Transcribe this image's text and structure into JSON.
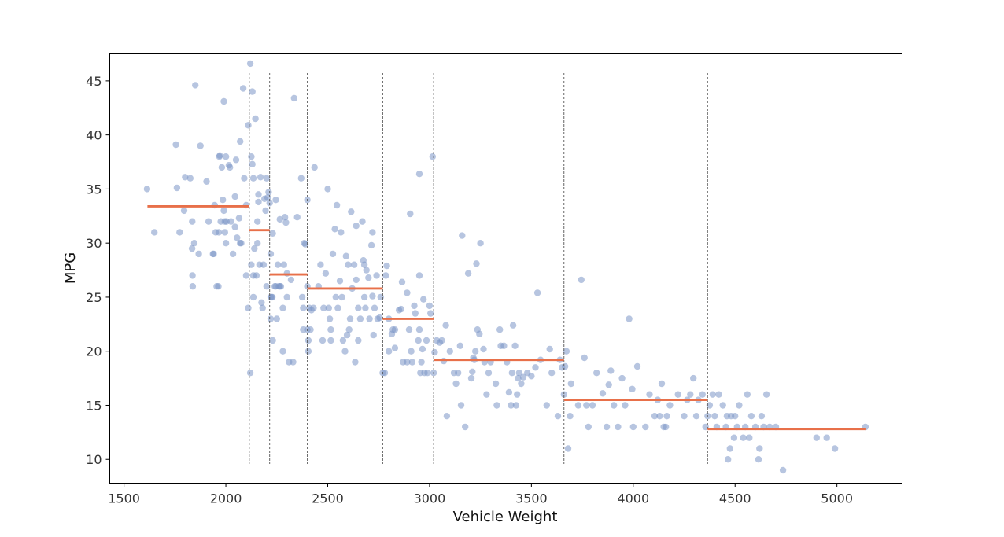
{
  "chart_data": {
    "type": "scatter",
    "title": "",
    "xlabel": "Vehicle Weight",
    "ylabel": "MPG",
    "xlim": [
      1430,
      5320
    ],
    "ylim": [
      7.8,
      47.5
    ],
    "x_ticks": [
      1500,
      2000,
      2500,
      3000,
      3500,
      4000,
      4500,
      5000
    ],
    "y_ticks": [
      10,
      15,
      20,
      25,
      30,
      35,
      40,
      45
    ],
    "grid": false,
    "legend": "none",
    "colors": {
      "points": "#7b96c6",
      "step_lines": "#e8704a",
      "bin_edges": "#555555",
      "frame": "#000000"
    },
    "bin_edges": [
      2115,
      2215,
      2400,
      2770,
      3020,
      3660,
      4365
    ],
    "step_segments": [
      {
        "x0": 1615,
        "x1": 2115,
        "y": 33.4
      },
      {
        "x0": 2115,
        "x1": 2215,
        "y": 31.2
      },
      {
        "x0": 2215,
        "x1": 2400,
        "y": 27.1
      },
      {
        "x0": 2400,
        "x1": 2770,
        "y": 25.8
      },
      {
        "x0": 2770,
        "x1": 3020,
        "y": 23.0
      },
      {
        "x0": 3020,
        "x1": 3660,
        "y": 19.2
      },
      {
        "x0": 3660,
        "x1": 4365,
        "y": 15.5
      },
      {
        "x0": 4365,
        "x1": 5140,
        "y": 12.8
      }
    ],
    "points": [
      [
        1613,
        35.0
      ],
      [
        1649,
        31.0
      ],
      [
        1755,
        39.1
      ],
      [
        1760,
        35.1
      ],
      [
        1773,
        31.0
      ],
      [
        1795,
        33.0
      ],
      [
        1800,
        36.1
      ],
      [
        1825,
        36.0
      ],
      [
        1834,
        29.5
      ],
      [
        1835,
        32.0
      ],
      [
        1836,
        27.0
      ],
      [
        1837,
        26.0
      ],
      [
        1845,
        30.0
      ],
      [
        1850,
        44.6
      ],
      [
        1867,
        29.0
      ],
      [
        1875,
        39.0
      ],
      [
        1905,
        35.7
      ],
      [
        1915,
        32.0
      ],
      [
        1937,
        29.0
      ],
      [
        1940,
        29.0
      ],
      [
        1945,
        33.5
      ],
      [
        1950,
        31.0
      ],
      [
        1955,
        26.0
      ],
      [
        1963,
        26.0
      ],
      [
        1965,
        31.0
      ],
      [
        1968,
        38.0
      ],
      [
        1970,
        38.1
      ],
      [
        1975,
        32.0
      ],
      [
        1980,
        37.0
      ],
      [
        1985,
        34.0
      ],
      [
        1990,
        43.1
      ],
      [
        1990,
        33.0
      ],
      [
        1995,
        32.0
      ],
      [
        1995,
        31.0
      ],
      [
        2000,
        38.0
      ],
      [
        2000,
        30.0
      ],
      [
        2003,
        32.0
      ],
      [
        2015,
        37.2
      ],
      [
        2020,
        37.0
      ],
      [
        2025,
        32.0
      ],
      [
        2035,
        29.0
      ],
      [
        2045,
        31.5
      ],
      [
        2045,
        34.3
      ],
      [
        2050,
        37.7
      ],
      [
        2055,
        30.5
      ],
      [
        2065,
        32.3
      ],
      [
        2070,
        39.4
      ],
      [
        2070,
        30.0
      ],
      [
        2075,
        30.0
      ],
      [
        2085,
        44.3
      ],
      [
        2090,
        36.0
      ],
      [
        2100,
        33.5
      ],
      [
        2100,
        27.0
      ],
      [
        2110,
        40.9
      ],
      [
        2110,
        24.0
      ],
      [
        2120,
        46.6
      ],
      [
        2120,
        18.0
      ],
      [
        2125,
        38.0
      ],
      [
        2125,
        28.0
      ],
      [
        2130,
        44.0
      ],
      [
        2130,
        37.3
      ],
      [
        2135,
        36.0
      ],
      [
        2135,
        27.0
      ],
      [
        2135,
        25.0
      ],
      [
        2140,
        29.5
      ],
      [
        2145,
        41.5
      ],
      [
        2150,
        27.0
      ],
      [
        2155,
        32.0
      ],
      [
        2155,
        30.0
      ],
      [
        2160,
        34.5
      ],
      [
        2160,
        33.8
      ],
      [
        2165,
        28.0
      ],
      [
        2170,
        36.1
      ],
      [
        2175,
        24.5
      ],
      [
        2180,
        24.0
      ],
      [
        2185,
        28.0
      ],
      [
        2190,
        34.1
      ],
      [
        2195,
        33.0
      ],
      [
        2200,
        36.0
      ],
      [
        2200,
        26.0
      ],
      [
        2205,
        34.2
      ],
      [
        2210,
        34.7
      ],
      [
        2215,
        33.7
      ],
      [
        2220,
        29.0
      ],
      [
        2220,
        25.0
      ],
      [
        2220,
        23.0
      ],
      [
        2225,
        25.0
      ],
      [
        2228,
        25.0
      ],
      [
        2230,
        21.0
      ],
      [
        2230,
        30.9
      ],
      [
        2240,
        26.0
      ],
      [
        2245,
        34.0
      ],
      [
        2245,
        26.0
      ],
      [
        2250,
        23.0
      ],
      [
        2255,
        28.0
      ],
      [
        2260,
        26.0
      ],
      [
        2265,
        32.2
      ],
      [
        2265,
        26.0
      ],
      [
        2270,
        26.0
      ],
      [
        2280,
        24.0
      ],
      [
        2280,
        20.0
      ],
      [
        2285,
        28.0
      ],
      [
        2290,
        32.4
      ],
      [
        2295,
        31.9
      ],
      [
        2300,
        27.2
      ],
      [
        2300,
        25.0
      ],
      [
        2310,
        19.0
      ],
      [
        2320,
        26.6
      ],
      [
        2330,
        19.0
      ],
      [
        2335,
        43.4
      ],
      [
        2350,
        32.4
      ],
      [
        2370,
        36.0
      ],
      [
        2375,
        25.0
      ],
      [
        2380,
        24.0
      ],
      [
        2380,
        22.0
      ],
      [
        2385,
        30.0
      ],
      [
        2390,
        29.9
      ],
      [
        2400,
        34.0
      ],
      [
        2400,
        26.0
      ],
      [
        2400,
        22.0
      ],
      [
        2405,
        21.0
      ],
      [
        2405,
        20.0
      ],
      [
        2410,
        24.0
      ],
      [
        2415,
        22.0
      ],
      [
        2420,
        23.8
      ],
      [
        2430,
        24.0
      ],
      [
        2435,
        37.0
      ],
      [
        2455,
        26.0
      ],
      [
        2465,
        28.0
      ],
      [
        2475,
        21.0
      ],
      [
        2480,
        24.0
      ],
      [
        2490,
        27.2
      ],
      [
        2500,
        35.0
      ],
      [
        2505,
        24.0
      ],
      [
        2510,
        23.0
      ],
      [
        2515,
        22.0
      ],
      [
        2515,
        21.0
      ],
      [
        2525,
        29.0
      ],
      [
        2535,
        31.3
      ],
      [
        2540,
        25.0
      ],
      [
        2545,
        33.5
      ],
      [
        2550,
        24.0
      ],
      [
        2560,
        26.5
      ],
      [
        2565,
        31.0
      ],
      [
        2570,
        25.0
      ],
      [
        2575,
        21.0
      ],
      [
        2585,
        20.0
      ],
      [
        2590,
        28.8
      ],
      [
        2595,
        21.5
      ],
      [
        2600,
        28.0
      ],
      [
        2605,
        22.0
      ],
      [
        2610,
        23.0
      ],
      [
        2615,
        32.9
      ],
      [
        2620,
        25.8
      ],
      [
        2630,
        28.0
      ],
      [
        2635,
        19.0
      ],
      [
        2640,
        26.6
      ],
      [
        2640,
        31.6
      ],
      [
        2650,
        21.0
      ],
      [
        2650,
        24.0
      ],
      [
        2660,
        23.0
      ],
      [
        2670,
        32.0
      ],
      [
        2675,
        28.4
      ],
      [
        2680,
        25.0
      ],
      [
        2680,
        28.0
      ],
      [
        2685,
        24.0
      ],
      [
        2690,
        27.5
      ],
      [
        2700,
        26.8
      ],
      [
        2705,
        23.0
      ],
      [
        2715,
        29.8
      ],
      [
        2720,
        31.0
      ],
      [
        2720,
        25.1
      ],
      [
        2725,
        21.5
      ],
      [
        2730,
        24.0
      ],
      [
        2740,
        27.0
      ],
      [
        2745,
        23.0
      ],
      [
        2755,
        23.1
      ],
      [
        2760,
        25.0
      ],
      [
        2770,
        18.0
      ],
      [
        2780,
        18.0
      ],
      [
        2785,
        27.0
      ],
      [
        2790,
        27.9
      ],
      [
        2800,
        23.0
      ],
      [
        2800,
        20.0
      ],
      [
        2815,
        21.6
      ],
      [
        2820,
        22.0
      ],
      [
        2830,
        22.0
      ],
      [
        2830,
        20.3
      ],
      [
        2850,
        23.8
      ],
      [
        2860,
        23.9
      ],
      [
        2865,
        26.4
      ],
      [
        2870,
        19.0
      ],
      [
        2890,
        25.4
      ],
      [
        2890,
        19.0
      ],
      [
        2900,
        22.0
      ],
      [
        2905,
        32.7
      ],
      [
        2910,
        20.0
      ],
      [
        2915,
        19.0
      ],
      [
        2925,
        24.2
      ],
      [
        2930,
        23.5
      ],
      [
        2945,
        21.0
      ],
      [
        2950,
        36.4
      ],
      [
        2950,
        22.0
      ],
      [
        2950,
        27.0
      ],
      [
        2955,
        18.0
      ],
      [
        2960,
        19.0
      ],
      [
        2965,
        20.2
      ],
      [
        2970,
        24.8
      ],
      [
        2975,
        18.0
      ],
      [
        2985,
        21.0
      ],
      [
        2990,
        18.0
      ],
      [
        3000,
        24.2
      ],
      [
        3005,
        23.5
      ],
      [
        3015,
        38.0
      ],
      [
        3020,
        18.0
      ],
      [
        3025,
        19.9
      ],
      [
        3035,
        21.0
      ],
      [
        3050,
        20.8
      ],
      [
        3060,
        21.0
      ],
      [
        3070,
        19.1
      ],
      [
        3080,
        22.4
      ],
      [
        3085,
        14.0
      ],
      [
        3100,
        20.0
      ],
      [
        3120,
        18.0
      ],
      [
        3130,
        17.0
      ],
      [
        3140,
        18.0
      ],
      [
        3150,
        20.5
      ],
      [
        3155,
        15.0
      ],
      [
        3160,
        30.7
      ],
      [
        3175,
        13.0
      ],
      [
        3190,
        27.2
      ],
      [
        3205,
        17.5
      ],
      [
        3210,
        18.1
      ],
      [
        3215,
        19.4
      ],
      [
        3220,
        19.2
      ],
      [
        3225,
        20.0
      ],
      [
        3230,
        28.1
      ],
      [
        3235,
        22.0
      ],
      [
        3245,
        21.6
      ],
      [
        3250,
        30.0
      ],
      [
        3265,
        20.2
      ],
      [
        3270,
        19.0
      ],
      [
        3280,
        16.0
      ],
      [
        3290,
        18.0
      ],
      [
        3300,
        19.0
      ],
      [
        3325,
        17.0
      ],
      [
        3330,
        15.0
      ],
      [
        3345,
        22.0
      ],
      [
        3350,
        20.5
      ],
      [
        3365,
        20.5
      ],
      [
        3380,
        19.0
      ],
      [
        3390,
        16.2
      ],
      [
        3400,
        15.0
      ],
      [
        3405,
        18.0
      ],
      [
        3410,
        22.4
      ],
      [
        3420,
        20.5
      ],
      [
        3425,
        15.0
      ],
      [
        3430,
        16.0
      ],
      [
        3435,
        17.5
      ],
      [
        3440,
        18.0
      ],
      [
        3450,
        17.0
      ],
      [
        3460,
        17.6
      ],
      [
        3480,
        18.0
      ],
      [
        3500,
        17.7
      ],
      [
        3520,
        18.5
      ],
      [
        3530,
        25.4
      ],
      [
        3545,
        19.2
      ],
      [
        3575,
        15.0
      ],
      [
        3590,
        20.2
      ],
      [
        3600,
        18.0
      ],
      [
        3630,
        14.0
      ],
      [
        3640,
        19.2
      ],
      [
        3650,
        18.5
      ],
      [
        3660,
        16.0
      ],
      [
        3665,
        18.6
      ],
      [
        3672,
        20.0
      ],
      [
        3680,
        11.0
      ],
      [
        3690,
        14.0
      ],
      [
        3695,
        17.0
      ],
      [
        3730,
        15.0
      ],
      [
        3745,
        26.6
      ],
      [
        3760,
        19.4
      ],
      [
        3770,
        15.0
      ],
      [
        3780,
        13.0
      ],
      [
        3800,
        15.0
      ],
      [
        3820,
        18.0
      ],
      [
        3850,
        16.1
      ],
      [
        3870,
        13.0
      ],
      [
        3880,
        16.9
      ],
      [
        3890,
        18.2
      ],
      [
        3905,
        15.0
      ],
      [
        3925,
        13.0
      ],
      [
        3945,
        17.5
      ],
      [
        3960,
        15.0
      ],
      [
        3980,
        23.0
      ],
      [
        3995,
        16.5
      ],
      [
        4000,
        13.0
      ],
      [
        4020,
        18.6
      ],
      [
        4060,
        13.0
      ],
      [
        4080,
        16.0
      ],
      [
        4105,
        14.0
      ],
      [
        4120,
        15.5
      ],
      [
        4130,
        14.0
      ],
      [
        4140,
        17.0
      ],
      [
        4150,
        13.0
      ],
      [
        4160,
        13.0
      ],
      [
        4165,
        14.0
      ],
      [
        4180,
        15.0
      ],
      [
        4220,
        16.0
      ],
      [
        4250,
        14.0
      ],
      [
        4265,
        15.5
      ],
      [
        4280,
        16.0
      ],
      [
        4295,
        17.5
      ],
      [
        4310,
        14.0
      ],
      [
        4320,
        15.5
      ],
      [
        4340,
        16.0
      ],
      [
        4355,
        13.0
      ],
      [
        4365,
        14.0
      ],
      [
        4375,
        15.0
      ],
      [
        4390,
        16.0
      ],
      [
        4400,
        14.0
      ],
      [
        4410,
        13.0
      ],
      [
        4420,
        16.0
      ],
      [
        4440,
        15.0
      ],
      [
        4455,
        13.0
      ],
      [
        4460,
        14.0
      ],
      [
        4465,
        10.0
      ],
      [
        4475,
        11.0
      ],
      [
        4480,
        14.0
      ],
      [
        4495,
        12.0
      ],
      [
        4500,
        14.0
      ],
      [
        4510,
        13.0
      ],
      [
        4520,
        15.0
      ],
      [
        4540,
        12.0
      ],
      [
        4550,
        13.0
      ],
      [
        4560,
        16.0
      ],
      [
        4570,
        12.0
      ],
      [
        4580,
        14.0
      ],
      [
        4600,
        13.0
      ],
      [
        4615,
        10.0
      ],
      [
        4620,
        11.0
      ],
      [
        4630,
        14.0
      ],
      [
        4640,
        13.0
      ],
      [
        4654,
        16.0
      ],
      [
        4670,
        13.0
      ],
      [
        4700,
        13.0
      ],
      [
        4735,
        9.0
      ],
      [
        4900,
        12.0
      ],
      [
        4950,
        12.0
      ],
      [
        4990,
        11.0
      ],
      [
        5140,
        13.0
      ]
    ]
  }
}
